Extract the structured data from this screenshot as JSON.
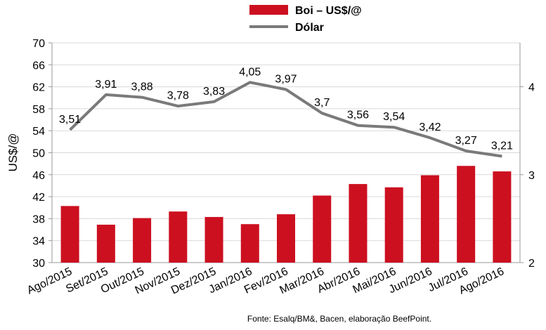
{
  "chart_data": {
    "type": "bar",
    "categories": [
      "Ago/2015",
      "Set/2015",
      "Out/2015",
      "Nov/2015",
      "Dez/2015",
      "Jan/2016",
      "Fev/2016",
      "Mar/2016",
      "Abr/2016",
      "Mai/2016",
      "Jun/2016",
      "Jul/2016",
      "Ago/2016"
    ],
    "series": [
      {
        "name": "Boi – US$/@",
        "type": "bar",
        "axis": "left",
        "color": "#cc1020",
        "values": [
          40.3,
          36.9,
          38.1,
          39.3,
          38.3,
          37.0,
          38.8,
          42.2,
          44.3,
          43.7,
          45.9,
          47.6,
          46.6
        ]
      },
      {
        "name": "Dólar",
        "type": "line",
        "axis": "right",
        "color": "#7a7a7a",
        "values": [
          3.51,
          3.91,
          3.88,
          3.78,
          3.83,
          4.05,
          3.97,
          3.7,
          3.56,
          3.54,
          3.42,
          3.27,
          3.21
        ],
        "labels": [
          "3,51",
          "3,91",
          "3,88",
          "3,78",
          "3,83",
          "4,05",
          "3,97",
          "3,7",
          "3,56",
          "3,54",
          "3,42",
          "3,27",
          "3,21"
        ]
      }
    ],
    "ylabel": "US$/@",
    "ylim": [
      30,
      70
    ],
    "yticks": [
      "30",
      "34",
      "38",
      "42",
      "46",
      "50",
      "54",
      "58",
      "62",
      "66",
      "70"
    ],
    "y2lim": [
      2,
      4.5
    ],
    "y2ticks": [
      "2",
      "3",
      "4"
    ],
    "grid": true,
    "legend_position": "top-center",
    "source_note": "Fonte: Esalq/BM&, Bacen, elaboração BeefPoint."
  }
}
